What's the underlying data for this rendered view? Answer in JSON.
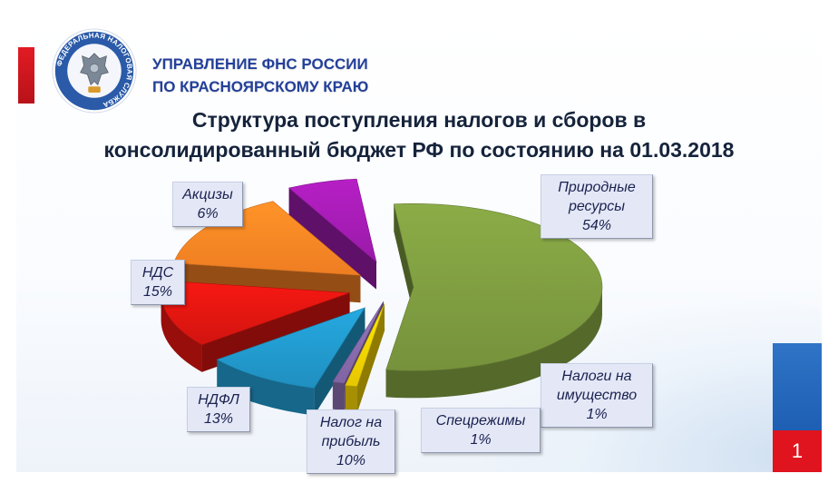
{
  "header": {
    "org_line1": "УПРАВЛЕНИЕ ФНС РОССИИ",
    "org_line2": "ПО КРАСНОЯРСКОМУ  КРАЮ",
    "logo_text": "ФЕДЕРАЛЬНАЯ НАЛОГОВАЯ СЛУЖБА"
  },
  "page_number": "1",
  "colors": {
    "natural_resources": "#76923c",
    "property_taxes": "#e6c700",
    "special_regimes": "#8064a2",
    "profit_tax": "#1f8fbf",
    "ndfl": "#d2140f",
    "vat": "#ee7d22",
    "excises": "#9a1aa8",
    "brand_blue": "#24409a",
    "brand_red": "#e0141e"
  },
  "chart_data": {
    "type": "pie",
    "title_line1": "Структура поступления налогов и сборов в",
    "title_line2": "консолидированный бюджет РФ по состоянию на 01.03.2018",
    "slices": [
      {
        "key": "natural_resources",
        "label_line1": "Природные",
        "label_line2": "ресурсы",
        "value_text": "54%",
        "value": 54,
        "color": "#76923c"
      },
      {
        "key": "property_taxes",
        "label_line1": "Налоги на",
        "label_line2": "имущество",
        "value_text": "1%",
        "value": 1,
        "color": "#e6c700"
      },
      {
        "key": "special_regimes",
        "label_line1": "Спецрежимы",
        "label_line2": "",
        "value_text": "1%",
        "value": 1,
        "color": "#8064a2"
      },
      {
        "key": "profit_tax",
        "label_line1": "Налог на",
        "label_line2": "прибыль",
        "value_text": "10%",
        "value": 10,
        "color": "#1f8fbf"
      },
      {
        "key": "ndfl",
        "label_line1": "НДФЛ",
        "label_line2": "",
        "value_text": "13%",
        "value": 13,
        "color": "#d2140f"
      },
      {
        "key": "vat",
        "label_line1": "НДС",
        "label_line2": "",
        "value_text": "15%",
        "value": 15,
        "color": "#ee7d22"
      },
      {
        "key": "excises",
        "label_line1": "Акцизы",
        "label_line2": "",
        "value_text": "6%",
        "value": 6,
        "color": "#9a1aa8"
      }
    ]
  }
}
